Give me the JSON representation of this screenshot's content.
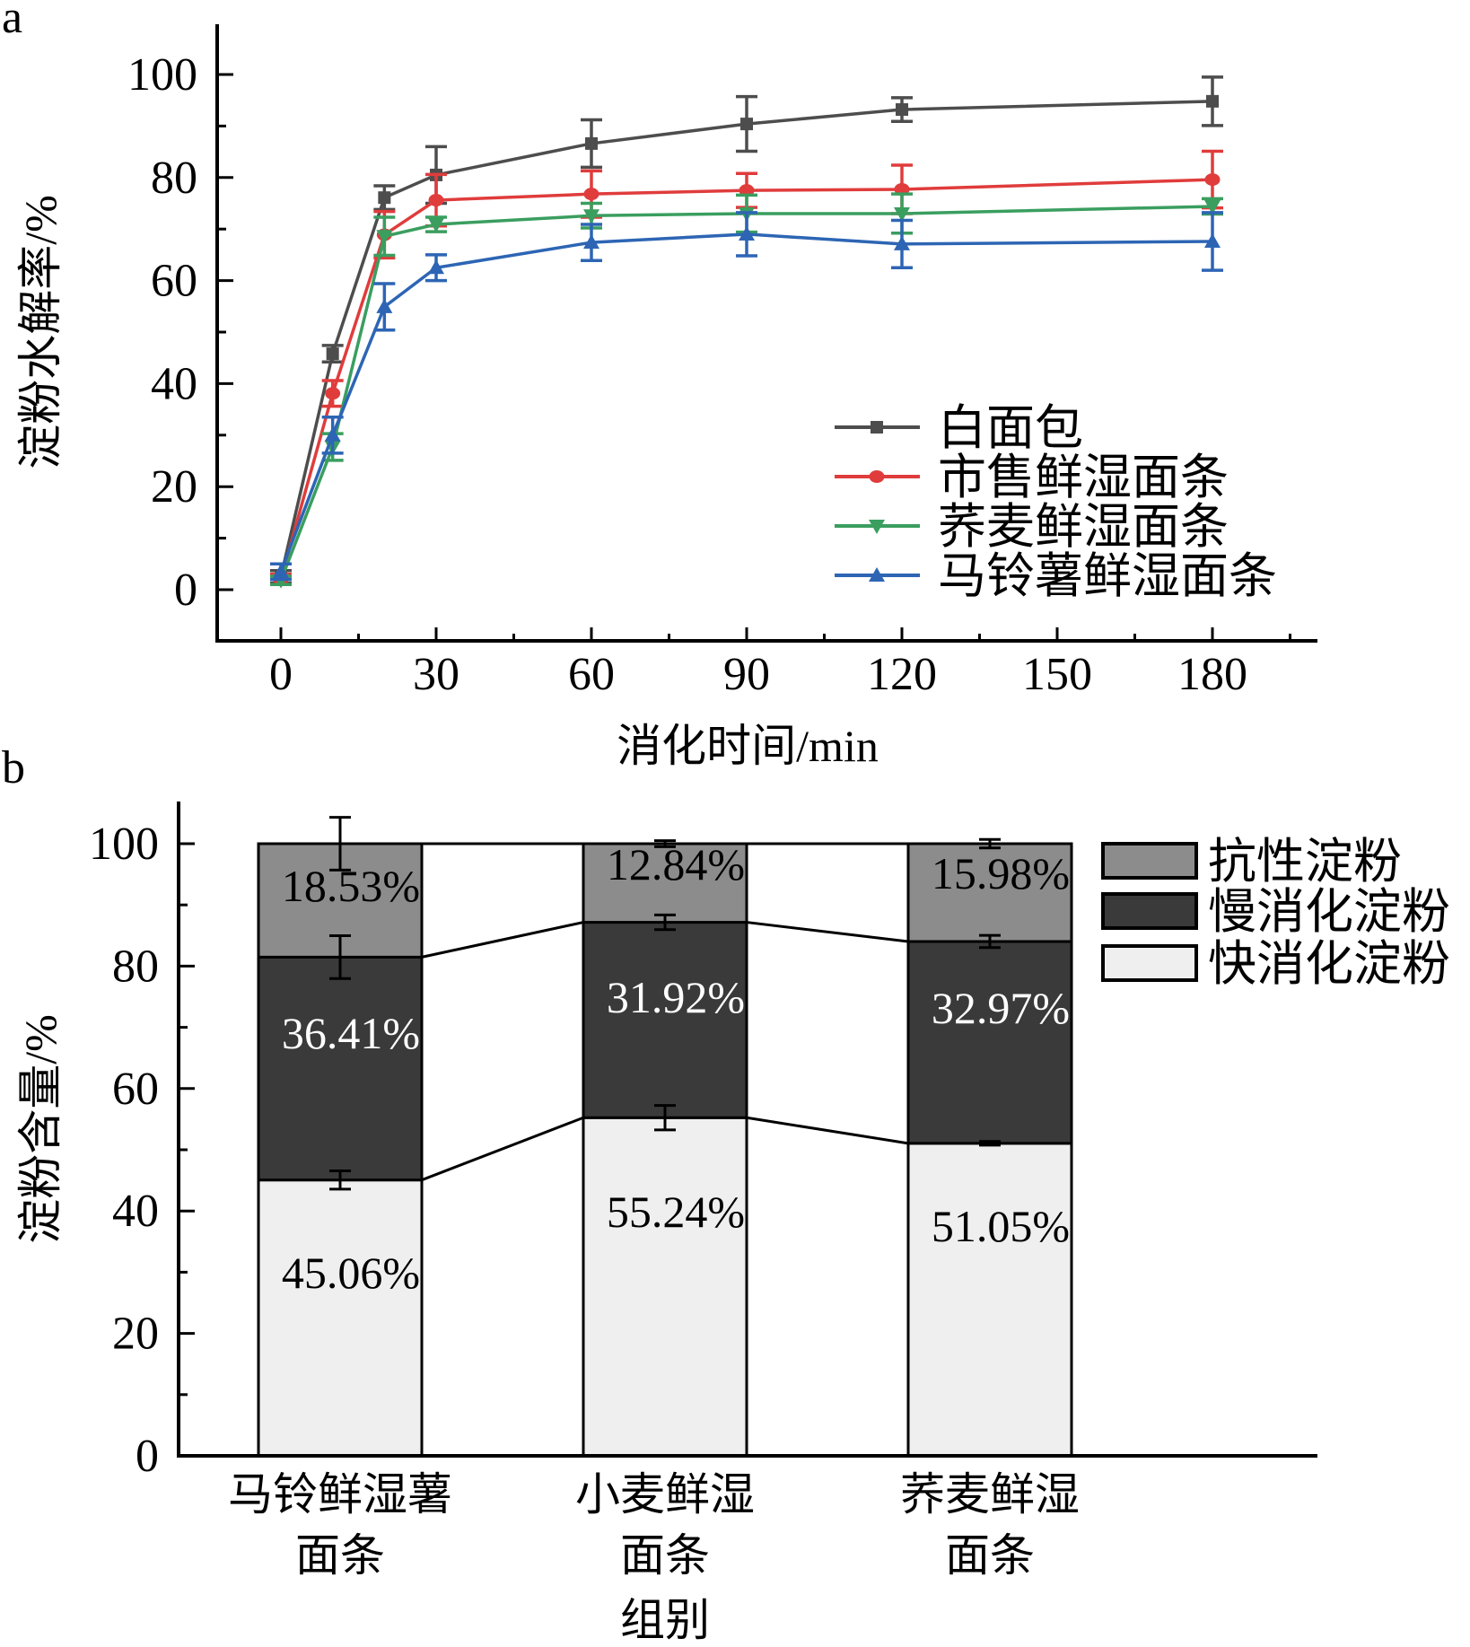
{
  "panels": {
    "a": "a",
    "b": "b"
  },
  "chart_data": [
    {
      "type": "line",
      "panel": "a",
      "xlabel": "消化时间/min",
      "ylabel": "淀粉水解率/%",
      "xlim": [
        -19,
        198
      ],
      "ylim": [
        -10,
        109
      ],
      "xticks": [
        0,
        30,
        60,
        90,
        120,
        150,
        180
      ],
      "xtick_labels": [
        "0",
        "30",
        "60",
        "90",
        "120",
        "150",
        "180"
      ],
      "yticks": [
        0,
        20,
        40,
        60,
        80,
        100
      ],
      "ytick_labels": [
        "0",
        "20",
        "40",
        "60",
        "80",
        "100"
      ],
      "grid": false,
      "legend_position": "bottom-right",
      "x": [
        0,
        10,
        20,
        30,
        60,
        90,
        120,
        180
      ],
      "series": [
        {
          "name": "白面包",
          "color": "#4d4d4d",
          "marker": "square",
          "values": [
            2.5,
            45.8,
            76.1,
            80.5,
            86.6,
            90.4,
            93.2,
            94.8
          ],
          "errors": [
            1.2,
            1.6,
            2.3,
            5.5,
            4.6,
            5.3,
            2.3,
            4.7
          ]
        },
        {
          "name": "市售鲜湿面条",
          "color": "#e03c3c",
          "marker": "circle",
          "values": [
            2.0,
            38.1,
            68.9,
            75.6,
            76.8,
            77.5,
            77.7,
            79.6
          ],
          "errors": [
            1.0,
            2.5,
            4.5,
            5.0,
            4.5,
            3.3,
            4.7,
            5.5
          ]
        },
        {
          "name": "荞麦鲜湿面条",
          "color": "#3a9e5f",
          "marker": "triangle-down",
          "values": [
            1.8,
            27.7,
            68.6,
            70.9,
            72.6,
            73.0,
            73.0,
            74.4
          ],
          "errors": [
            0.8,
            2.6,
            3.7,
            1.4,
            2.4,
            3.6,
            3.8,
            1.5
          ]
        },
        {
          "name": "马铃薯鲜湿面条",
          "color": "#2d65b4",
          "marker": "triangle-up",
          "values": [
            3.5,
            30.0,
            54.9,
            62.5,
            67.4,
            69.0,
            67.1,
            67.6
          ],
          "errors": [
            1.5,
            3.5,
            4.5,
            2.5,
            3.5,
            4.2,
            4.6,
            5.6
          ]
        }
      ]
    },
    {
      "type": "bar",
      "stacked": true,
      "panel": "b",
      "xlabel": "组别",
      "ylabel": "淀粉含量/%",
      "ylim": [
        0,
        107
      ],
      "yticks": [
        0,
        20,
        40,
        60,
        80,
        100
      ],
      "ytick_labels": [
        "0",
        "20",
        "40",
        "60",
        "80",
        "100"
      ],
      "grid": false,
      "legend_position": "top-right",
      "categories": [
        {
          "line1": "马铃鲜湿薯",
          "line2": "面条"
        },
        {
          "line1": "小麦鲜湿",
          "line2": "面条"
        },
        {
          "line1": "荞麦鲜湿",
          "line2": "面条"
        }
      ],
      "series": [
        {
          "name": "快消化淀粉",
          "color": "#efefef",
          "label_color": "#000000",
          "values": [
            45.06,
            55.24,
            51.05
          ],
          "labels": [
            "45.06%",
            "55.24%",
            "51.05%"
          ],
          "errors": [
            1.5,
            2.0,
            0.3
          ]
        },
        {
          "name": "慢消化淀粉",
          "color": "#3a3a3a",
          "label_color": "#ffffff",
          "values": [
            36.41,
            31.92,
            32.97
          ],
          "labels": [
            "36.41%",
            "31.92%",
            "32.97%"
          ],
          "errors": [
            3.5,
            1.2,
            1.0
          ]
        },
        {
          "name": "抗性淀粉",
          "color": "#8c8c8c",
          "label_color": "#000000",
          "values": [
            18.53,
            12.84,
            15.98
          ],
          "labels": [
            "18.53%",
            "12.84%",
            "15.98%"
          ],
          "errors": [
            4.3,
            0.5,
            0.7
          ]
        }
      ],
      "legend_order": [
        "抗性淀粉",
        "慢消化淀粉",
        "快消化淀粉"
      ]
    }
  ]
}
